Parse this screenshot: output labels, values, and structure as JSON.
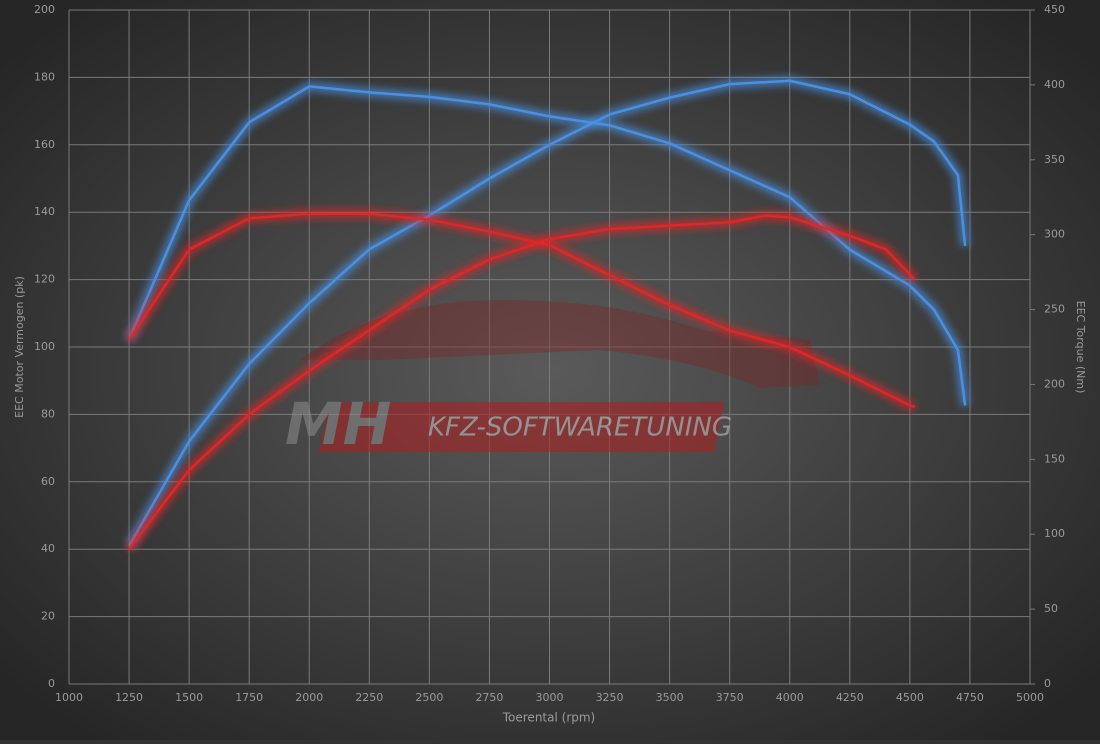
{
  "chart_data": {
    "type": "line",
    "xlabel": "Toerental (rpm)",
    "ylabel": "EEC Motor Vermogen (pk)",
    "y2label": "EEC Torque (Nm)",
    "watermark": [
      "MH",
      "KFZ-SOFTWARETUNING"
    ],
    "xlim": [
      1000,
      5000
    ],
    "xticks": [
      1000,
      1250,
      1500,
      1750,
      2000,
      2250,
      2500,
      2750,
      3000,
      3250,
      3500,
      3750,
      4000,
      4250,
      4500,
      4750,
      5000
    ],
    "ylim": [
      0,
      200
    ],
    "yticks": [
      0,
      20,
      40,
      60,
      80,
      100,
      120,
      140,
      160,
      180,
      200
    ],
    "y2lim": [
      0,
      450
    ],
    "y2ticks": [
      0,
      50,
      100,
      150,
      200,
      250,
      300,
      350,
      400,
      450
    ],
    "grid": true,
    "series": [
      {
        "color": "#4a90e2",
        "axis": "y",
        "x": [
          1250,
          1500,
          1750,
          2000,
          2250,
          2500,
          2750,
          3000,
          3250,
          3500,
          3750,
          4000,
          4250,
          4500,
          4600,
          4700,
          4730
        ],
        "values": [
          41,
          72,
          95,
          113,
          129,
          139,
          150,
          160,
          169,
          174,
          178,
          179,
          175,
          166,
          161,
          151,
          130
        ]
      },
      {
        "color": "#4a90e2",
        "axis": "y2",
        "x": [
          1250,
          1500,
          1750,
          2000,
          2250,
          2500,
          2750,
          3000,
          3250,
          3500,
          3750,
          4000,
          4250,
          4500,
          4600,
          4700,
          4730
        ],
        "values": [
          230,
          323,
          375,
          399,
          395,
          392,
          387,
          379,
          373,
          361,
          343,
          325,
          290,
          266,
          250,
          223,
          186
        ]
      },
      {
        "color": "#e02626",
        "axis": "y",
        "x": [
          1250,
          1500,
          1750,
          2000,
          2250,
          2500,
          2750,
          3000,
          3250,
          3500,
          3750,
          3900,
          4000,
          4250,
          4400,
          4520
        ],
        "values": [
          40,
          63.5,
          80,
          93,
          105,
          117,
          126,
          132,
          135,
          136,
          137,
          139,
          138.5,
          133,
          129,
          120
        ]
      },
      {
        "color": "#e02626",
        "axis": "y2",
        "x": [
          1250,
          1500,
          1750,
          2000,
          2250,
          2500,
          2750,
          3000,
          3250,
          3500,
          3750,
          4000,
          4250,
          4500,
          4520
        ],
        "values": [
          230,
          290,
          311,
          314,
          314,
          310,
          302,
          293,
          273,
          253,
          236,
          225,
          206,
          186,
          185
        ]
      }
    ]
  }
}
